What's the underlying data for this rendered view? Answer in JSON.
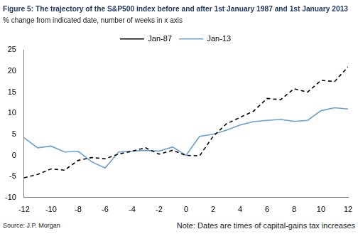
{
  "chart_data": {
    "type": "line",
    "title": "Figure 5: The trajectory of the S&P500 index before and after 1st January 1987 and 1st January 2013",
    "subtitle": "% change from indicated date, number of weeks in x axis",
    "annotations": [
      "Note: Dates are times of capital-gains tax increases",
      "Source: J.P. Morgan"
    ],
    "x": [
      -12,
      -11,
      -10,
      -9,
      -8,
      -7,
      -6,
      -5,
      -4,
      -3,
      -2,
      -1,
      0,
      1,
      2,
      3,
      4,
      5,
      6,
      7,
      8,
      9,
      10,
      11,
      12
    ],
    "series": [
      {
        "name": "Jan-87",
        "color": "#000000",
        "line_style": "dashed",
        "values": [
          -5.3,
          -4.5,
          -3.2,
          -3.5,
          -1.2,
          -0.5,
          -0.8,
          0.3,
          1.0,
          1.8,
          0.3,
          1.2,
          0.0,
          -0.1,
          4.5,
          7.5,
          9.0,
          10.5,
          13.5,
          13.2,
          15.8,
          15.0,
          17.8,
          17.5,
          21.0
        ]
      },
      {
        "name": "Jan-13",
        "color": "#6a9fcf",
        "line_style": "solid",
        "values": [
          4.2,
          1.8,
          2.2,
          0.8,
          1.0,
          -1.5,
          -3.0,
          0.8,
          1.0,
          1.2,
          1.0,
          2.0,
          0.0,
          4.5,
          5.0,
          6.0,
          7.2,
          8.0,
          8.3,
          8.5,
          8.1,
          8.3,
          10.6,
          11.3,
          11.0
        ]
      }
    ],
    "xlim": [
      -12,
      12
    ],
    "xticks": [
      -12,
      -10,
      -8,
      -6,
      -4,
      -2,
      0,
      2,
      4,
      6,
      8,
      10,
      12
    ],
    "ylim": [
      -10,
      25
    ],
    "yticks": [
      -10,
      -5,
      0,
      5,
      10,
      15,
      20,
      25
    ],
    "grid": false,
    "legend": "top"
  }
}
